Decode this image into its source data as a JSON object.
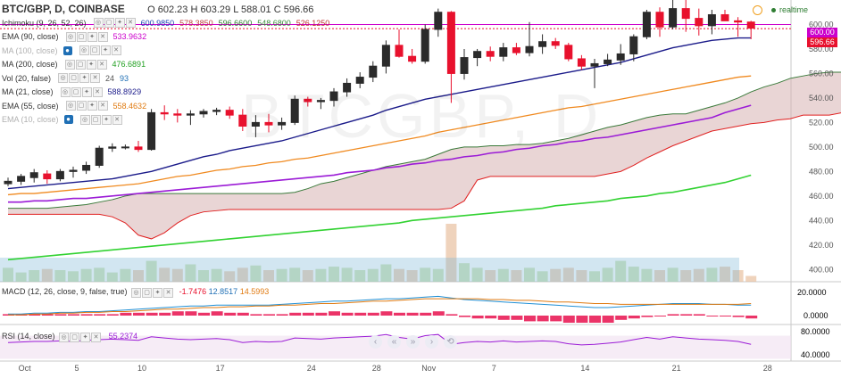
{
  "header": {
    "symbol": "BTC/GBP, D, COINBASE",
    "ohlc": {
      "o_label": "O",
      "o": "602.23",
      "h_label": "H",
      "h": "603.29",
      "l_label": "L",
      "l": "588.01",
      "c_label": "C",
      "c": "596.66"
    },
    "realtime": "realtime"
  },
  "indicators": [
    {
      "label": "Ichimoku (9, 26, 52, 26)",
      "values": [
        "600.9850",
        "578.3850",
        "596.6600",
        "548.6800",
        "526.1250"
      ],
      "colors": [
        "#1b3fb5",
        "#c04040",
        "#2f7a2f",
        "#3a8a3a",
        "#c03030"
      ]
    },
    {
      "label": "EMA (90, close)",
      "values": [
        "533.9632"
      ],
      "colors": [
        "#cc00cc"
      ]
    },
    {
      "label": "MA (100, close)",
      "values": [],
      "colors": []
    },
    {
      "label": "MA (200, close)",
      "values": [
        "476.6891"
      ],
      "colors": [
        "#22a022"
      ]
    },
    {
      "label": "Vol (20, false)",
      "values": [
        "24",
        "93"
      ],
      "colors": [
        "#555555",
        "#1f6fb5"
      ]
    },
    {
      "label": "MA (21, close)",
      "values": [
        "588.8929"
      ],
      "colors": [
        "#1b1b8a"
      ]
    },
    {
      "label": "EMA (55, close)",
      "values": [
        "558.4632"
      ],
      "colors": [
        "#e07a10"
      ]
    },
    {
      "label": "EMA (10, close)",
      "values": [],
      "colors": []
    }
  ],
  "price_tags": {
    "upper": "600.00",
    "current": "596.66"
  },
  "watermark": "BTCGBP, D",
  "macd": {
    "label": "MACD (12, 26, close, 9, false, true)",
    "values": [
      "-1.7476",
      "12.8517",
      "14.5993"
    ],
    "axis": [
      "20.0000",
      "0.0000"
    ]
  },
  "rsi": {
    "label": "RSI (14, close)",
    "value": "55.2374",
    "axis": [
      "80.0000",
      "40.0000"
    ]
  },
  "colors": {
    "up": "#2b2b2b",
    "down": "#e8112d",
    "ma21": "#1b1b8a",
    "ema55": "#f08a20",
    "ema90": "#9b1bd6",
    "ma200": "#32d232",
    "kumo": "#d7b3b3",
    "volume": "#7fb8d8"
  },
  "chart_data": {
    "type": "candlestick",
    "xlabel": "",
    "ylabel": "",
    "ylim": [
      390,
      620
    ],
    "y_ticks": [
      400,
      420,
      440,
      460,
      480,
      500,
      520,
      540,
      560,
      580,
      600
    ],
    "x_tick_labels": [
      "Oct",
      "5",
      "10",
      "17",
      "24",
      "28",
      "Nov",
      "7",
      "14",
      "21",
      "28"
    ],
    "candles": [
      {
        "o": 470,
        "h": 475,
        "l": 468,
        "c": 472
      },
      {
        "o": 472,
        "h": 478,
        "l": 469,
        "c": 476
      },
      {
        "o": 475,
        "h": 482,
        "l": 471,
        "c": 479
      },
      {
        "o": 478,
        "h": 481,
        "l": 470,
        "c": 474
      },
      {
        "o": 474,
        "h": 482,
        "l": 472,
        "c": 480
      },
      {
        "o": 480,
        "h": 484,
        "l": 475,
        "c": 481
      },
      {
        "o": 481,
        "h": 488,
        "l": 478,
        "c": 485
      },
      {
        "o": 485,
        "h": 501,
        "l": 483,
        "c": 499
      },
      {
        "o": 499,
        "h": 503,
        "l": 496,
        "c": 500
      },
      {
        "o": 500,
        "h": 502,
        "l": 498,
        "c": 500
      },
      {
        "o": 500,
        "h": 505,
        "l": 496,
        "c": 498
      },
      {
        "o": 498,
        "h": 531,
        "l": 497,
        "c": 528
      },
      {
        "o": 528,
        "h": 534,
        "l": 522,
        "c": 527
      },
      {
        "o": 527,
        "h": 531,
        "l": 520,
        "c": 526
      },
      {
        "o": 526,
        "h": 530,
        "l": 518,
        "c": 527
      },
      {
        "o": 527,
        "h": 531,
        "l": 524,
        "c": 529
      },
      {
        "o": 529,
        "h": 532,
        "l": 526,
        "c": 530
      },
      {
        "o": 530,
        "h": 533,
        "l": 523,
        "c": 526
      },
      {
        "o": 526,
        "h": 531,
        "l": 513,
        "c": 517
      },
      {
        "o": 517,
        "h": 526,
        "l": 508,
        "c": 520
      },
      {
        "o": 520,
        "h": 527,
        "l": 512,
        "c": 518
      },
      {
        "o": 518,
        "h": 524,
        "l": 514,
        "c": 520
      },
      {
        "o": 520,
        "h": 542,
        "l": 518,
        "c": 539
      },
      {
        "o": 539,
        "h": 541,
        "l": 533,
        "c": 537
      },
      {
        "o": 537,
        "h": 540,
        "l": 531,
        "c": 538
      },
      {
        "o": 538,
        "h": 548,
        "l": 533,
        "c": 545
      },
      {
        "o": 545,
        "h": 556,
        "l": 541,
        "c": 552
      },
      {
        "o": 552,
        "h": 561,
        "l": 548,
        "c": 557
      },
      {
        "o": 557,
        "h": 570,
        "l": 553,
        "c": 566
      },
      {
        "o": 566,
        "h": 587,
        "l": 560,
        "c": 583
      },
      {
        "o": 583,
        "h": 596,
        "l": 573,
        "c": 574
      },
      {
        "o": 574,
        "h": 580,
        "l": 568,
        "c": 570
      },
      {
        "o": 570,
        "h": 600,
        "l": 568,
        "c": 596
      },
      {
        "o": 596,
        "h": 613,
        "l": 590,
        "c": 610
      },
      {
        "o": 610,
        "h": 611,
        "l": 536,
        "c": 560
      },
      {
        "o": 560,
        "h": 580,
        "l": 555,
        "c": 573
      },
      {
        "o": 573,
        "h": 580,
        "l": 566,
        "c": 578
      },
      {
        "o": 578,
        "h": 582,
        "l": 570,
        "c": 574
      },
      {
        "o": 574,
        "h": 585,
        "l": 570,
        "c": 581
      },
      {
        "o": 581,
        "h": 585,
        "l": 575,
        "c": 577
      },
      {
        "o": 577,
        "h": 602,
        "l": 574,
        "c": 582
      },
      {
        "o": 582,
        "h": 592,
        "l": 576,
        "c": 586
      },
      {
        "o": 586,
        "h": 589,
        "l": 580,
        "c": 583
      },
      {
        "o": 583,
        "h": 585,
        "l": 570,
        "c": 572
      },
      {
        "o": 572,
        "h": 575,
        "l": 563,
        "c": 566
      },
      {
        "o": 566,
        "h": 572,
        "l": 548,
        "c": 568
      },
      {
        "o": 568,
        "h": 576,
        "l": 566,
        "c": 571
      },
      {
        "o": 571,
        "h": 584,
        "l": 567,
        "c": 576
      },
      {
        "o": 576,
        "h": 592,
        "l": 570,
        "c": 590
      },
      {
        "o": 590,
        "h": 612,
        "l": 588,
        "c": 610
      },
      {
        "o": 610,
        "h": 614,
        "l": 590,
        "c": 598
      },
      {
        "o": 598,
        "h": 620,
        "l": 596,
        "c": 613
      },
      {
        "o": 613,
        "h": 622,
        "l": 594,
        "c": 605
      },
      {
        "o": 605,
        "h": 613,
        "l": 591,
        "c": 599
      },
      {
        "o": 599,
        "h": 612,
        "l": 592,
        "c": 608
      },
      {
        "o": 608,
        "h": 612,
        "l": 603,
        "c": 603
      },
      {
        "o": 603,
        "h": 606,
        "l": 590,
        "c": 602
      },
      {
        "o": 602,
        "h": 603,
        "l": 588,
        "c": 597
      }
    ],
    "series": [
      {
        "name": "MA (21, close)",
        "values": [
          466,
          467,
          468,
          469,
          470,
          471,
          472,
          473,
          474,
          476,
          478,
          480,
          483,
          486,
          489,
          492,
          494,
          497,
          499,
          501,
          503,
          505,
          508,
          511,
          514,
          517,
          520,
          523,
          526,
          530,
          533,
          536,
          539,
          541,
          543,
          545,
          547,
          549,
          551,
          553,
          555,
          557,
          559,
          561,
          563,
          565,
          567,
          569,
          572,
          575,
          578,
          581,
          583,
          585,
          587,
          588,
          589,
          589
        ]
      },
      {
        "name": "EMA (55, close)",
        "values": [
          461,
          462,
          462,
          463,
          464,
          465,
          466,
          467,
          468,
          469,
          470,
          472,
          474,
          476,
          477,
          479,
          481,
          482,
          484,
          485,
          487,
          488,
          490,
          491,
          493,
          495,
          497,
          499,
          501,
          503,
          505,
          507,
          509,
          512,
          514,
          516,
          518,
          520,
          522,
          524,
          526,
          528,
          530,
          532,
          533,
          535,
          537,
          539,
          541,
          543,
          545,
          547,
          549,
          551,
          553,
          555,
          557,
          558
        ]
      },
      {
        "name": "EMA (90, close)",
        "values": [
          455,
          455,
          456,
          456,
          457,
          458,
          458,
          459,
          460,
          461,
          462,
          463,
          464,
          465,
          466,
          467,
          468,
          469,
          470,
          471,
          472,
          473,
          474,
          475,
          476,
          477,
          479,
          480,
          481,
          483,
          484,
          486,
          487,
          489,
          490,
          492,
          493,
          495,
          496,
          498,
          499,
          501,
          502,
          504,
          505,
          507,
          508,
          510,
          512,
          514,
          516,
          518,
          520,
          522,
          524,
          528,
          531,
          534
        ]
      },
      {
        "name": "MA (200, close)",
        "values": [
          408,
          409,
          410,
          411,
          412,
          413,
          414,
          415,
          416,
          417,
          418,
          419,
          420,
          421,
          422,
          423,
          424,
          425,
          426,
          427,
          428,
          429,
          430,
          431,
          432,
          433,
          434,
          435,
          436,
          437,
          438,
          440,
          441,
          442,
          443,
          444,
          445,
          446,
          447,
          448,
          449,
          450,
          452,
          453,
          454,
          455,
          456,
          458,
          459,
          460,
          462,
          463,
          465,
          467,
          469,
          471,
          474,
          477
        ]
      },
      {
        "name": "Senkou A",
        "values": [
          450,
          450,
          450,
          450,
          451,
          452,
          453,
          455,
          457,
          460,
          462,
          462,
          462,
          462,
          462,
          462,
          462,
          462,
          462,
          462,
          462,
          462,
          463,
          466,
          470,
          472,
          475,
          478,
          481,
          484,
          486,
          488,
          490,
          494,
          498,
          500,
          500,
          501,
          501,
          502,
          502,
          503,
          505,
          507,
          510,
          513,
          516,
          518,
          521,
          524,
          526,
          527,
          527,
          530,
          533,
          536,
          540,
          545,
          549,
          552,
          556,
          558,
          560,
          561,
          561,
          562,
          562,
          563,
          564
        ]
      },
      {
        "name": "Senkou B",
        "values": [
          445,
          445,
          445,
          445,
          445,
          445,
          445,
          445,
          443,
          438,
          428,
          425,
          430,
          438,
          444,
          447,
          448,
          449,
          449,
          449,
          449,
          449,
          449,
          449,
          449,
          449,
          449,
          449,
          449,
          449,
          449,
          449,
          449,
          449,
          450,
          456,
          473,
          476,
          476,
          476,
          476,
          476,
          476,
          476,
          476,
          476,
          478,
          480,
          485,
          491,
          496,
          501,
          505,
          509,
          513,
          515,
          517,
          519,
          520,
          522,
          523,
          526,
          526,
          526,
          528,
          530,
          532,
          532,
          532
        ]
      },
      {
        "name": "Volume",
        "values": [
          12,
          8,
          10,
          11,
          10,
          9,
          11,
          12,
          8,
          11,
          10,
          18,
          12,
          11,
          15,
          10,
          11,
          9,
          12,
          14,
          10,
          11,
          12,
          10,
          11,
          13,
          12,
          10,
          11,
          15,
          11,
          10,
          12,
          11,
          50,
          16,
          12,
          10,
          11,
          10,
          12,
          9,
          11,
          12,
          10,
          9,
          12,
          18,
          13,
          11,
          10,
          12,
          10,
          11,
          12,
          13,
          10,
          5
        ]
      },
      {
        "name": "MACD",
        "values": [
          2,
          2,
          3,
          3,
          4,
          4,
          5,
          5,
          6,
          7,
          8,
          9,
          10,
          11,
          12,
          12,
          13,
          13,
          13,
          13,
          13,
          14,
          15,
          16,
          17,
          18,
          18,
          19,
          20,
          21,
          21,
          22,
          23,
          24,
          22,
          20,
          19,
          18,
          17,
          16,
          15,
          14,
          13,
          12,
          11,
          10,
          10,
          11,
          12,
          13,
          14,
          15,
          15,
          15,
          14,
          14,
          13,
          13
        ]
      },
      {
        "name": "Signal",
        "values": [
          1,
          1,
          2,
          2,
          3,
          3,
          4,
          4,
          5,
          5,
          6,
          7,
          8,
          8,
          9,
          10,
          10,
          11,
          11,
          12,
          12,
          13,
          13,
          14,
          15,
          15,
          16,
          17,
          18,
          18,
          19,
          20,
          21,
          21,
          21,
          21,
          21,
          20,
          20,
          19,
          19,
          18,
          17,
          17,
          16,
          15,
          15,
          14,
          14,
          14,
          14,
          14,
          14,
          14,
          14,
          14,
          14,
          15
        ]
      },
      {
        "name": "RSI",
        "values": [
          58,
          59,
          60,
          60,
          61,
          60,
          62,
          63,
          64,
          63,
          62,
          68,
          66,
          64,
          63,
          64,
          65,
          63,
          58,
          60,
          59,
          60,
          66,
          65,
          64,
          66,
          67,
          68,
          69,
          72,
          67,
          64,
          70,
          72,
          55,
          58,
          60,
          59,
          61,
          59,
          60,
          61,
          60,
          56,
          54,
          55,
          57,
          59,
          63,
          67,
          64,
          68,
          66,
          64,
          63,
          62,
          60,
          55
        ]
      }
    ]
  }
}
